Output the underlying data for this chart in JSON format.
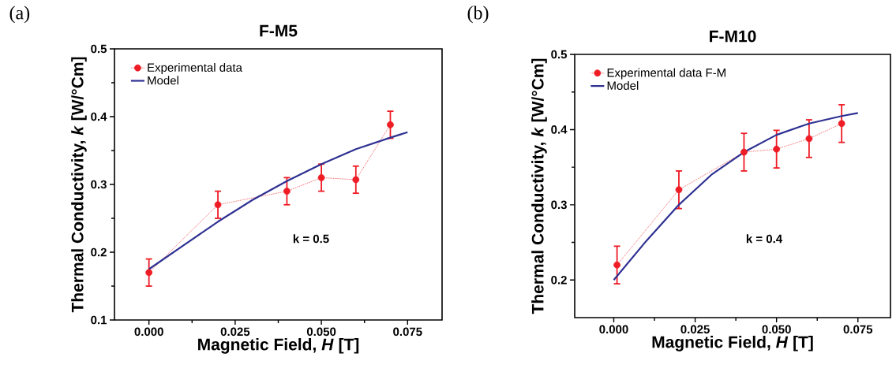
{
  "chart_data": [
    {
      "type": "line",
      "title": "F-M5",
      "xlabel": "Magnetic Field, *H* [T]",
      "ylabel": "Thermal Conductivity, *k* [W/°Cm]",
      "annotations": [
        "(a)",
        "k = 0.5"
      ],
      "xlim": [
        -0.01,
        0.085
      ],
      "ylim": [
        0.1,
        0.5
      ],
      "xticks": [
        {
          "value": 0,
          "label": "0.000"
        },
        {
          "value": 0.025,
          "label": "0.025"
        },
        {
          "value": 0.05,
          "label": "0.050"
        },
        {
          "value": 0.075,
          "label": "0.075"
        }
      ],
      "yticks": [
        0.1,
        0.2,
        0.3,
        0.4,
        0.5
      ],
      "legend": "top left",
      "grid": false,
      "series": [
        {
          "name": "Experimental data",
          "color": "#ee1c25",
          "marker": "circle",
          "line_style": "dotted",
          "x": [
            0,
            0.02,
            0.04,
            0.05,
            0.06,
            0.07
          ],
          "values": [
            0.17,
            0.27,
            0.29,
            0.31,
            0.307,
            0.388
          ],
          "errors": [
            0.02,
            0.02,
            0.02,
            0.02,
            0.02,
            0.02
          ]
        },
        {
          "name": "Model",
          "type": "line",
          "color": "#2e3192",
          "marker": "none",
          "line_style": "solid",
          "x": [
            0,
            0.01,
            0.02,
            0.03,
            0.04,
            0.05,
            0.06,
            0.07,
            0.075
          ],
          "values": [
            0.175,
            0.21,
            0.245,
            0.277,
            0.305,
            0.33,
            0.352,
            0.369,
            0.377
          ]
        }
      ]
    },
    {
      "type": "line",
      "title": "F-M10",
      "xlabel": "Magnetic Field, *H* [T]",
      "ylabel": "Thermal Conductivity, *k* [W/°Cm]",
      "annotations": [
        "(b)",
        "k = 0.4"
      ],
      "xlim": [
        -0.012,
        0.085
      ],
      "ylim": [
        0.15,
        0.5
      ],
      "xticks": [
        {
          "value": 0,
          "label": "0.000"
        },
        {
          "value": 0.025,
          "label": "0.025"
        },
        {
          "value": 0.05,
          "label": "0.050"
        },
        {
          "value": 0.075,
          "label": "0.075"
        }
      ],
      "yticks": [
        0.2,
        0.3,
        0.4,
        0.5
      ],
      "legend": "top left",
      "grid": false,
      "series": [
        {
          "name": "Experimental data F-M",
          "color": "#ee1c25",
          "marker": "circle",
          "line_style": "dotted",
          "x": [
            0.001,
            0.02,
            0.04,
            0.05,
            0.06,
            0.07
          ],
          "values": [
            0.22,
            0.32,
            0.37,
            0.374,
            0.388,
            0.408
          ],
          "errors": [
            0.025,
            0.025,
            0.025,
            0.025,
            0.025,
            0.025
          ]
        },
        {
          "name": "Model",
          "type": "line",
          "color": "#2e3192",
          "marker": "none",
          "line_style": "solid",
          "x": [
            0,
            0.01,
            0.02,
            0.03,
            0.04,
            0.05,
            0.06,
            0.07,
            0.075
          ],
          "values": [
            0.2,
            0.252,
            0.3,
            0.34,
            0.37,
            0.393,
            0.408,
            0.418,
            0.422
          ]
        }
      ]
    }
  ]
}
